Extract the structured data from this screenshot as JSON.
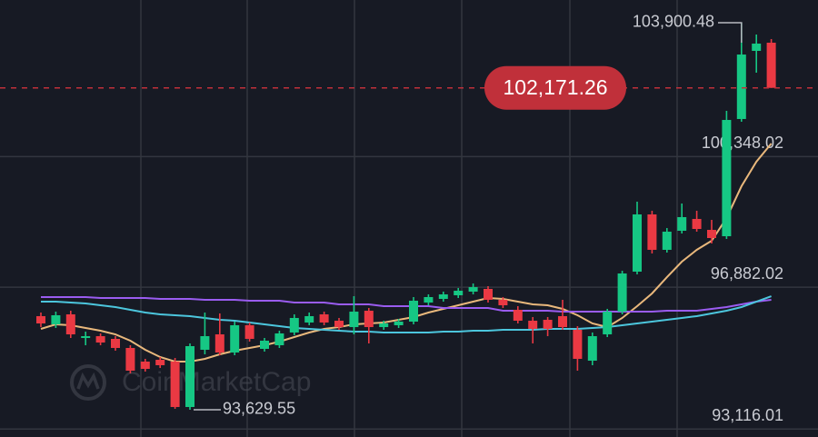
{
  "chart_data": {
    "type": "candlestick",
    "watermark": "CoinMarketCap",
    "up_color": "#16c784",
    "down_color": "#ea3943",
    "open": [
      96113,
      95896,
      96161,
      95534,
      95582,
      95510,
      95269,
      94907,
      94955,
      94907,
      93702,
      95221,
      95630,
      95148,
      95872,
      95245,
      95341,
      95679,
      95944,
      96161,
      95992,
      95823,
      96257,
      95823,
      95872,
      95968,
      96474,
      96571,
      96667,
      96764,
      96836,
      96547,
      96281,
      95992,
      96016,
      96113,
      95751,
      94931,
      95630,
      96233,
      97294,
      98813,
      97873,
      98379,
      98693,
      98403,
      98234,
      101345,
      103153,
      103370
    ],
    "high": [
      96209,
      96233,
      96257,
      95703,
      95655,
      95582,
      95341,
      94980,
      95028,
      95004,
      95389,
      96209,
      96185,
      95968,
      95944,
      95534,
      95727,
      96161,
      96209,
      96233,
      96065,
      96643,
      96330,
      95992,
      96040,
      96619,
      96691,
      96764,
      96860,
      96981,
      96908,
      96619,
      96378,
      96089,
      96089,
      96547,
      95847,
      95679,
      96306,
      97318,
      99151,
      98910,
      98451,
      99102,
      98910,
      98668,
      101562,
      103900.48,
      103587,
      103466
    ],
    "low": [
      95823,
      95799,
      95534,
      95341,
      95341,
      95196,
      94594,
      94642,
      94738,
      93654,
      93629.55,
      95100,
      95076,
      95076,
      95438,
      95172,
      95269,
      95606,
      95872,
      95872,
      95751,
      95630,
      95389,
      95751,
      95799,
      95896,
      96402,
      96498,
      96595,
      96691,
      96474,
      96330,
      95920,
      95389,
      95582,
      95751,
      94666,
      94811,
      95558,
      96161,
      97222,
      97776,
      97800,
      98307,
      98355,
      98042,
      98162,
      101272,
      102574,
      102171.26
    ],
    "close": [
      95920,
      96137,
      95630,
      95582,
      95413,
      95269,
      94666,
      94714,
      94811,
      93702,
      95317,
      95582,
      95148,
      95872,
      95510,
      95462,
      95655,
      96065,
      96113,
      95944,
      95823,
      96233,
      95823,
      95920,
      95968,
      96523,
      96619,
      96691,
      96788,
      96884,
      96547,
      96402,
      95992,
      95775,
      95775,
      95823,
      94980,
      95582,
      96233,
      97246,
      98813,
      97873,
      98355,
      98741,
      98427,
      98186,
      101320,
      103056,
      103346,
      102171.26
    ],
    "lines": [
      {
        "color": "#e9b87c",
        "values": [
          95775,
          95896,
          95872,
          95799,
          95727,
          95630,
          95462,
          95221,
          95028,
          94907,
          94907,
          94980,
          95100,
          95196,
          95269,
          95341,
          95438,
          95558,
          95679,
          95775,
          95823,
          95896,
          95920,
          95944,
          96016,
          96089,
          96209,
          96306,
          96402,
          96498,
          96595,
          96571,
          96498,
          96426,
          96402,
          96306,
          96137,
          95920,
          95823,
          96065,
          96378,
          96716,
          97149,
          97559,
          97873,
          98114,
          98717,
          99560,
          100211,
          100694
        ]
      },
      {
        "color": "#9a5cf0",
        "values": [
          96619,
          96619,
          96619,
          96619,
          96595,
          96595,
          96595,
          96595,
          96571,
          96571,
          96571,
          96547,
          96547,
          96547,
          96523,
          96523,
          96523,
          96474,
          96474,
          96474,
          96426,
          96426,
          96426,
          96378,
          96378,
          96378,
          96378,
          96330,
          96330,
          96330,
          96330,
          96257,
          96257,
          96257,
          96257,
          96233,
          96233,
          96233,
          96233,
          96233,
          96233,
          96233,
          96257,
          96257,
          96257,
          96306,
          96354,
          96426,
          96498,
          96547
        ]
      },
      {
        "color": "#4cc6dd",
        "values": [
          96498,
          96498,
          96474,
          96450,
          96402,
          96354,
          96281,
          96209,
          96161,
          96137,
          96113,
          96065,
          96016,
          95992,
          95944,
          95896,
          95847,
          95799,
          95775,
          95751,
          95727,
          95703,
          95703,
          95679,
          95679,
          95679,
          95679,
          95703,
          95703,
          95727,
          95727,
          95751,
          95751,
          95751,
          95775,
          95775,
          95775,
          95799,
          95823,
          95872,
          95920,
          95968,
          96016,
          96065,
          96113,
          96185,
          96257,
          96354,
          96498,
          96643
        ]
      }
    ],
    "ylim": [
      92906,
      104503
    ],
    "yticks": [
      {
        "value": 100348.02,
        "label": "100,348.02"
      },
      {
        "value": 96882.02,
        "label": "96,882.02"
      },
      {
        "value": 93116.01,
        "label": "93,116.01"
      }
    ],
    "grid": true,
    "high_label": {
      "value": 103900.48,
      "label": "103,900.48"
    },
    "low_label": {
      "value": 93629.55,
      "label": "93,629.55"
    },
    "last_price": {
      "value": 102171.26,
      "label": "102,171.26",
      "color": "#c0303a"
    }
  }
}
